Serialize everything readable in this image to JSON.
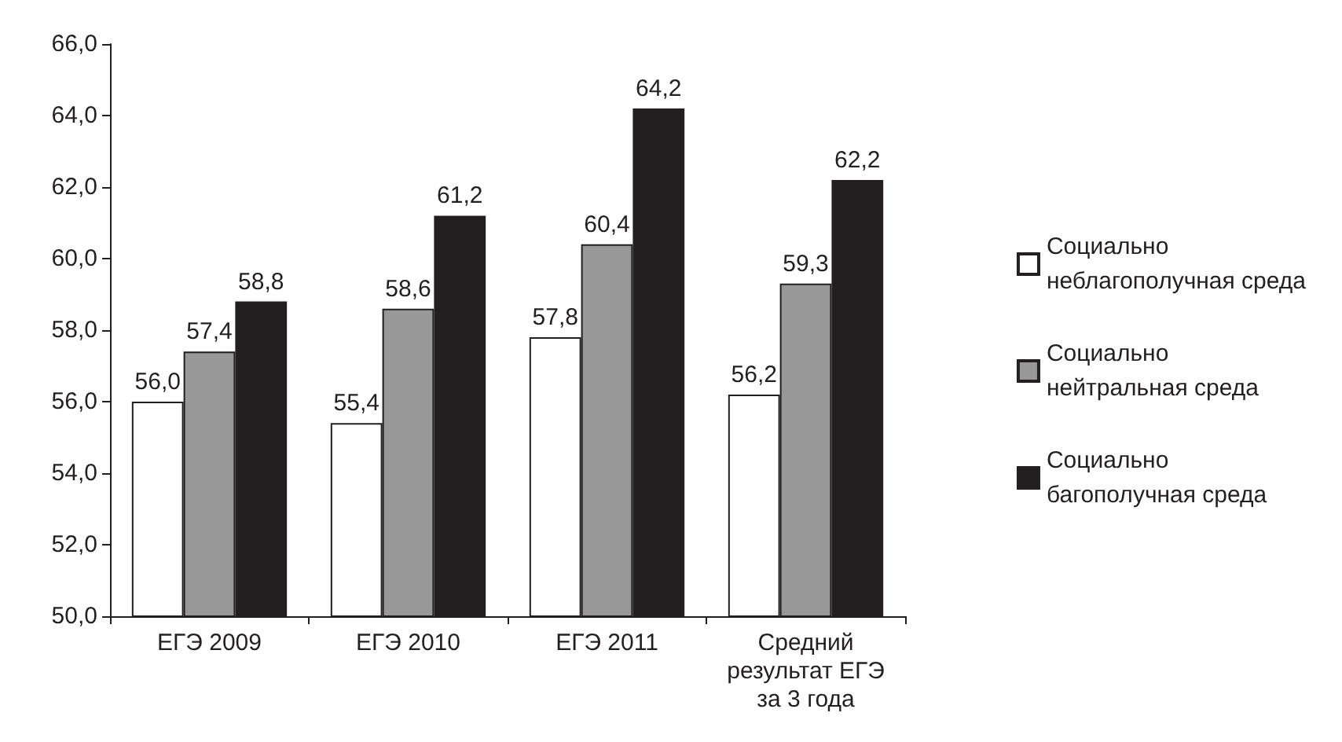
{
  "chart_data": {
    "type": "bar",
    "categories": [
      "ЕГЭ 2009",
      "ЕГЭ 2010",
      "ЕГЭ 2011",
      "Средний\nрезультат ЕГЭ\nза 3 года"
    ],
    "series": [
      {
        "name": "Социально\nнеблагополучная среда",
        "color": "#ffffff",
        "values": [
          56.0,
          55.4,
          57.8,
          56.2
        ],
        "value_labels": [
          "56,0",
          "55,4",
          "57,8",
          "56,2"
        ]
      },
      {
        "name": "Социально\nнейтральная среда",
        "color": "#989898",
        "values": [
          57.4,
          58.6,
          60.4,
          59.3
        ],
        "value_labels": [
          "57,4",
          "58,6",
          "60,4",
          "59,3"
        ]
      },
      {
        "name": "Социально\nбагополучная среда",
        "color": "#231f20",
        "values": [
          58.8,
          61.2,
          64.2,
          62.2
        ],
        "value_labels": [
          "58,8",
          "61,2",
          "64,2",
          "62,2"
        ]
      }
    ],
    "ylim": [
      50,
      66
    ],
    "yticks": [
      {
        "value": 50,
        "label": "50,0"
      },
      {
        "value": 52,
        "label": "52,0"
      },
      {
        "value": 54,
        "label": "54,0"
      },
      {
        "value": 56,
        "label": "56,0"
      },
      {
        "value": 58,
        "label": "58,0"
      },
      {
        "value": 60,
        "label": "60,0"
      },
      {
        "value": 62,
        "label": "62,0"
      },
      {
        "value": 64,
        "label": "64,0"
      },
      {
        "value": 66,
        "label": "66,0"
      }
    ],
    "grid": false,
    "legend": "right"
  }
}
